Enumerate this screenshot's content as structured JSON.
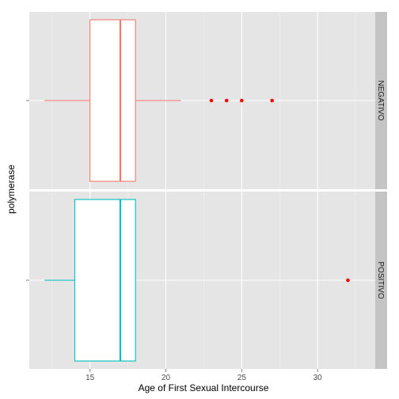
{
  "chart_data": {
    "type": "boxplot",
    "orientation": "horizontal",
    "xlabel": "Age of First Sexual Intercourse",
    "ylabel": "polymerase",
    "xlim": [
      11.0,
      33.8
    ],
    "x_ticks": [
      15,
      20,
      25,
      30
    ],
    "x_minor_ticks": [
      12.5,
      17.5,
      22.5,
      27.5,
      32.5
    ],
    "grid": true,
    "legend": "none",
    "outlier_color": "#ff0000",
    "facets": [
      {
        "strip": "NEGATIVO",
        "color": "#f8766d",
        "whisker_low": 12,
        "q1": 15,
        "median": 17,
        "q3": 18,
        "whisker_high": 21,
        "outliers": [
          23,
          24,
          25,
          27
        ]
      },
      {
        "strip": "POSITIVO",
        "color": "#00bfc4",
        "whisker_low": 12,
        "q1": 14,
        "median": 17,
        "q3": 18,
        "whisker_high": 18,
        "outliers": [
          32
        ]
      }
    ]
  }
}
